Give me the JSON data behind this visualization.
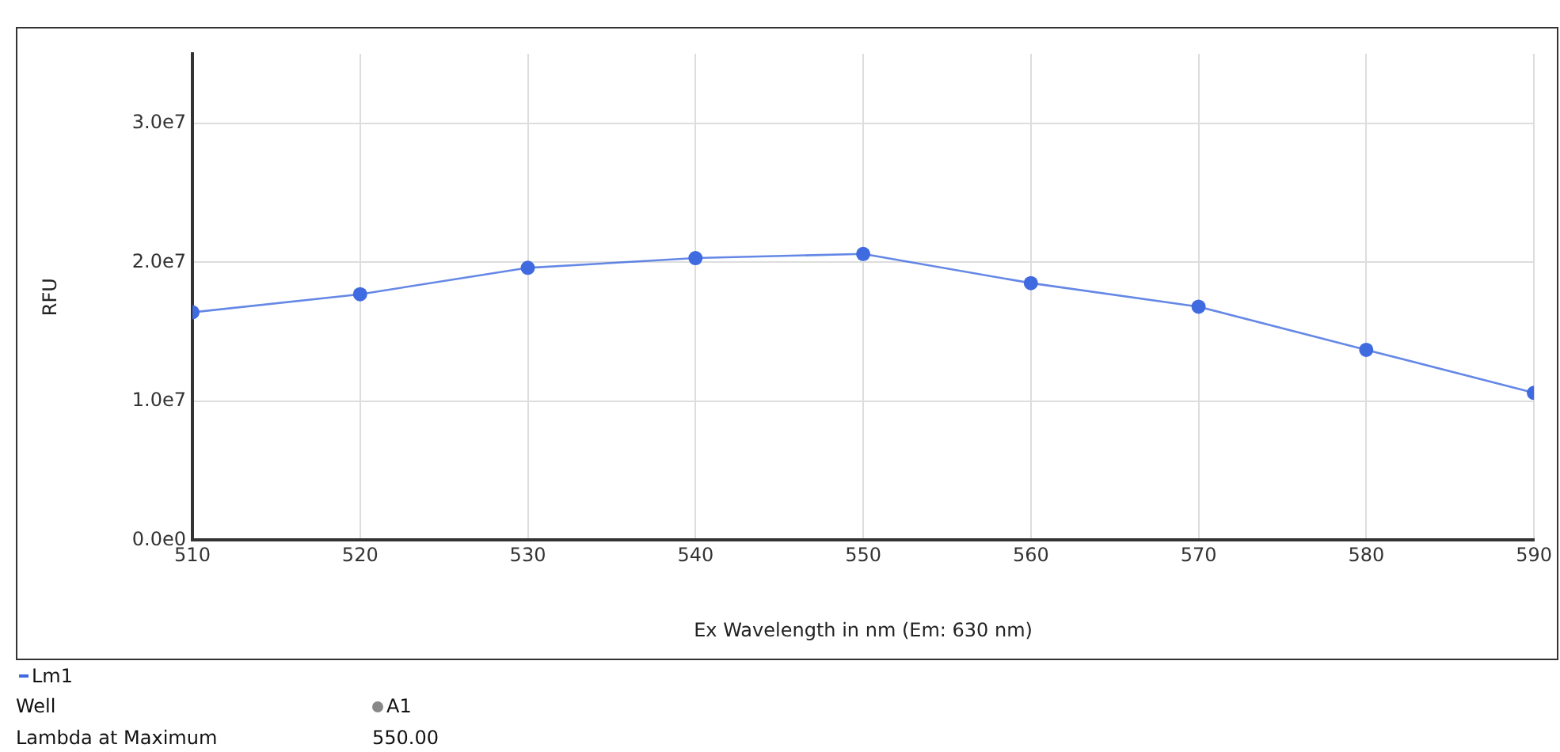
{
  "chart_data": {
    "type": "line",
    "xlabel": "Ex Wavelength in nm (Em: 630 nm)",
    "ylabel": "RFU",
    "x": [
      510,
      520,
      530,
      540,
      550,
      560,
      570,
      580,
      590
    ],
    "series": [
      {
        "name": "Lm1",
        "color": "#3f6ae0",
        "values": [
          16400000,
          17700000,
          19600000,
          20300000,
          20600000,
          18500000,
          16800000,
          13700000,
          10600000
        ]
      }
    ],
    "xlim": [
      510,
      590
    ],
    "xticks": [
      510,
      520,
      530,
      540,
      550,
      560,
      570,
      580,
      590
    ],
    "ylim": [
      0,
      35000000
    ],
    "yticks": [
      {
        "value": 0,
        "label": "0.0e0"
      },
      {
        "value": 10000000,
        "label": "1.0e7"
      },
      {
        "value": 20000000,
        "label": "2.0e7"
      },
      {
        "value": 30000000,
        "label": "3.0e7"
      }
    ],
    "grid": true,
    "legend": "bottom left",
    "marker": "circle",
    "line_style": "solid",
    "annotations": [
      "Well",
      "A1",
      "Lambda at Maximum",
      "550.00"
    ]
  }
}
